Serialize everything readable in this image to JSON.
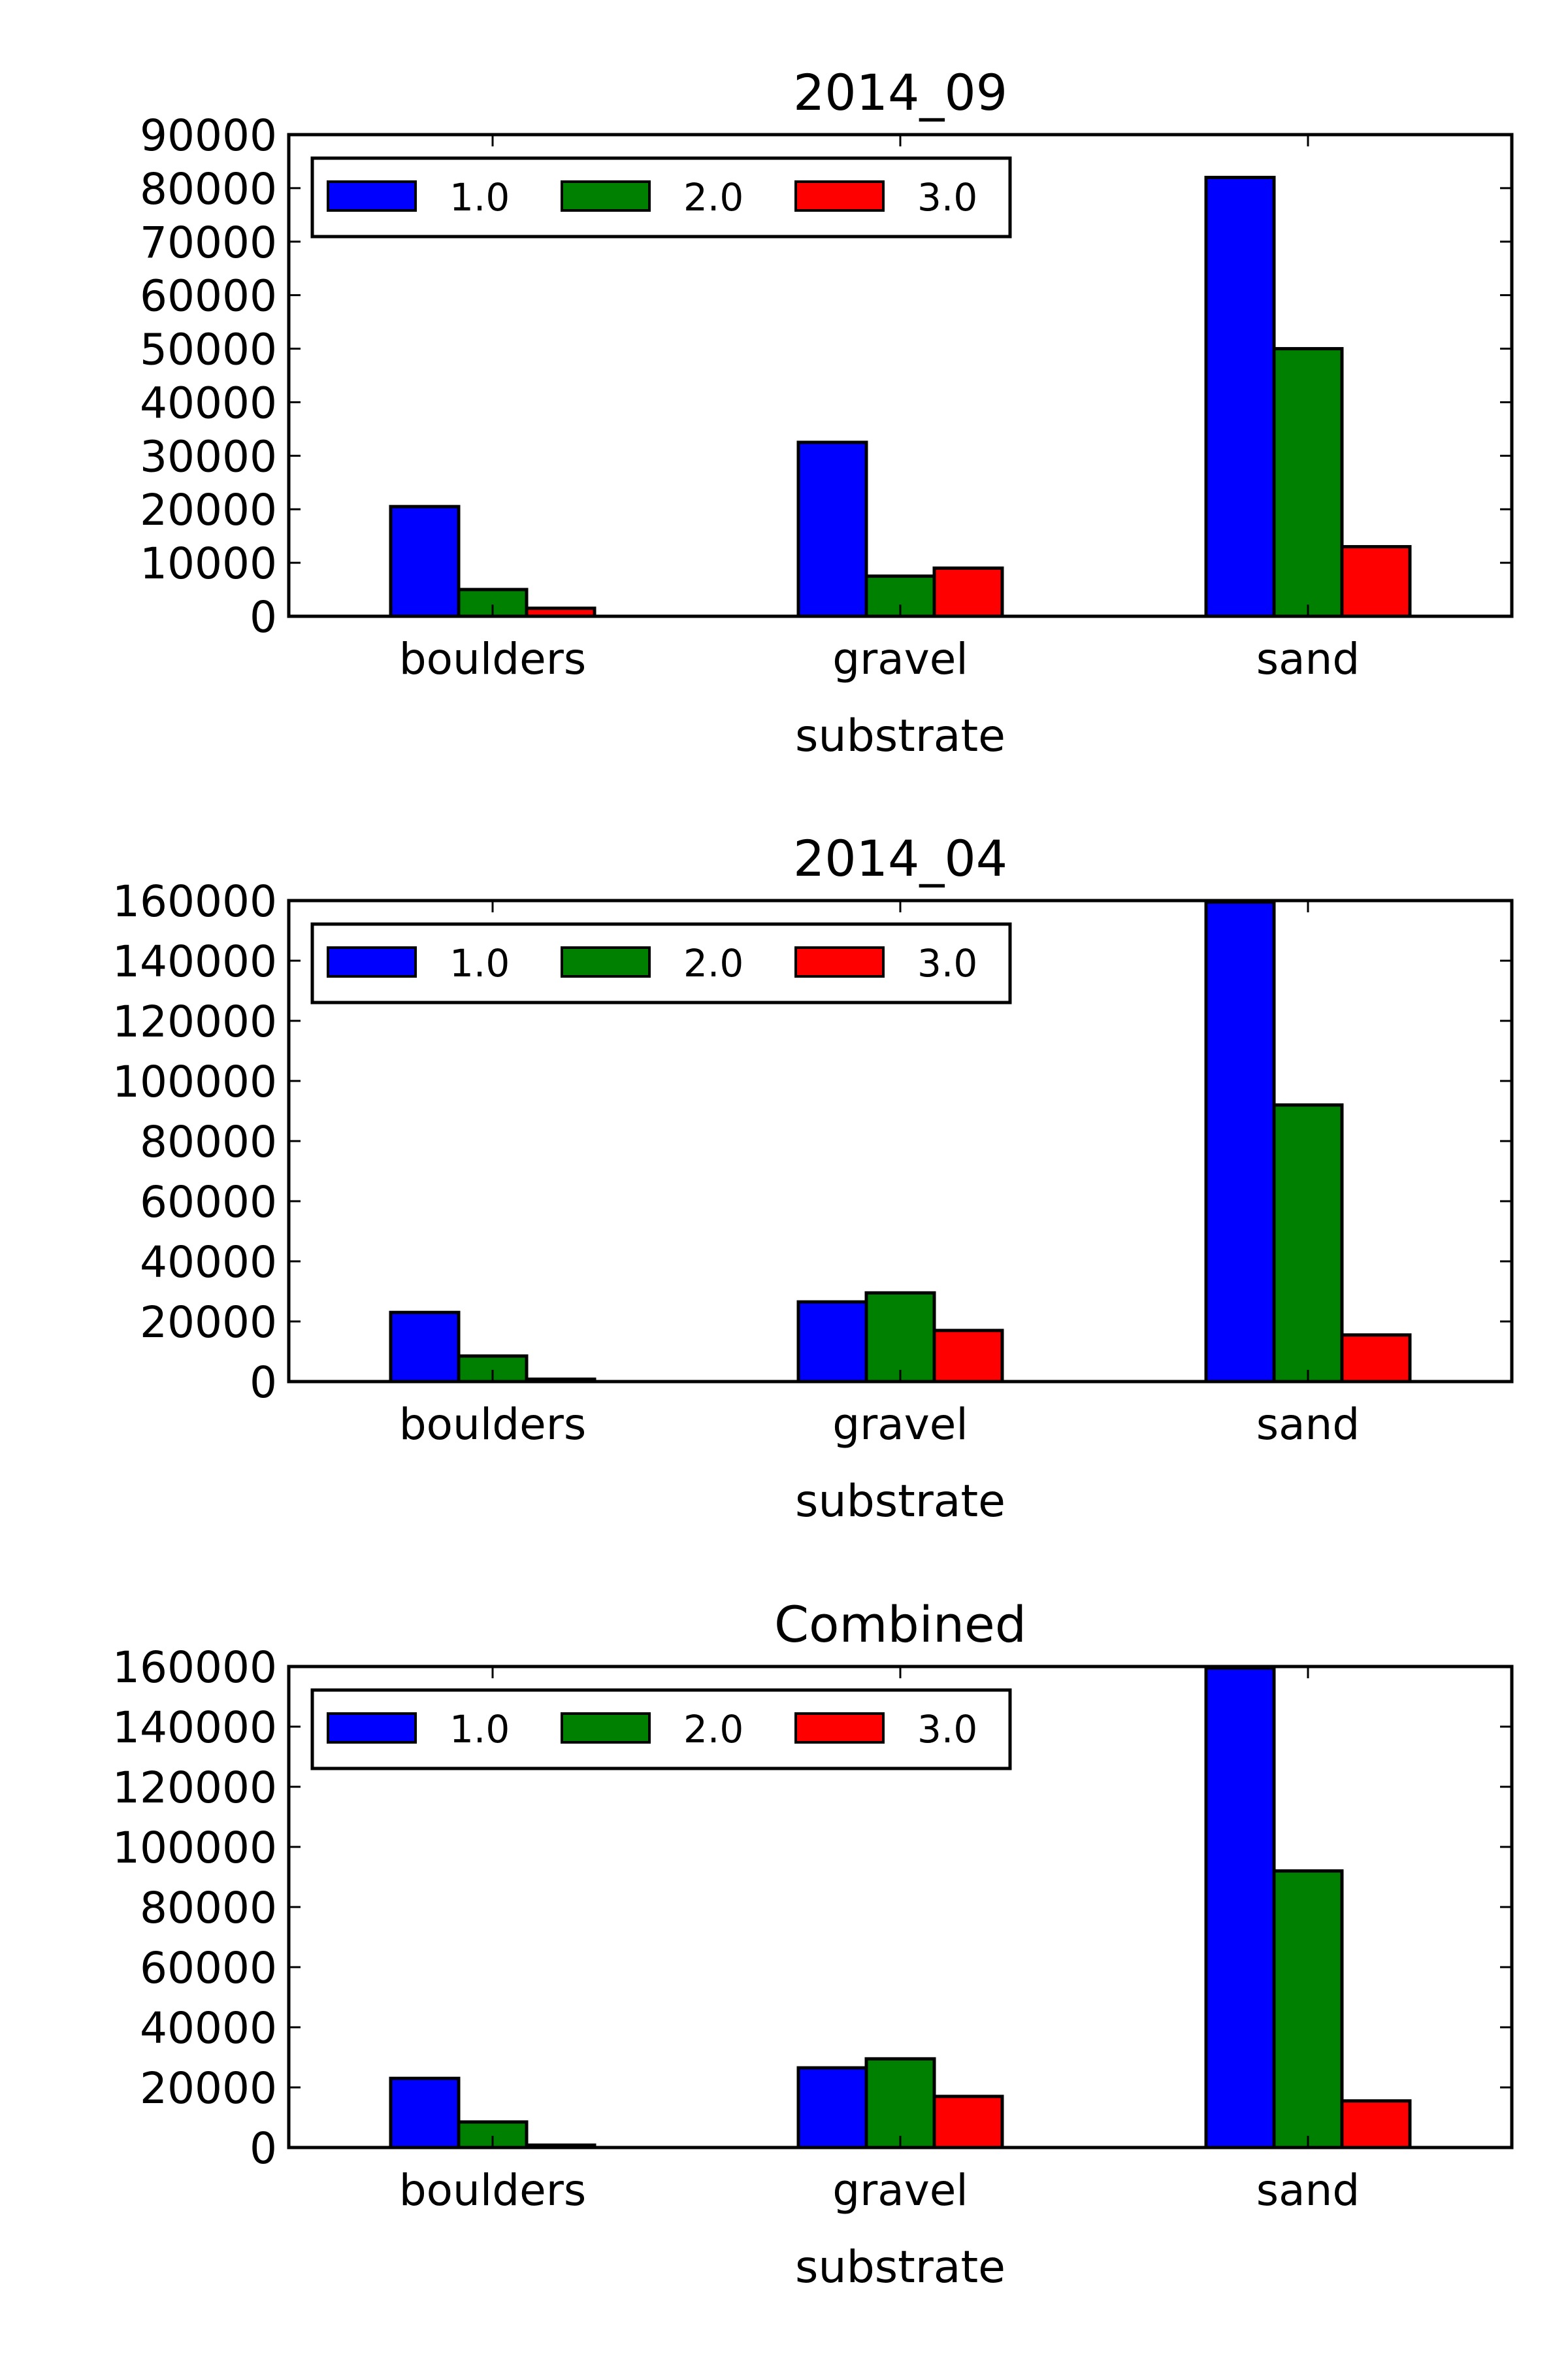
{
  "figure": {
    "x_axis_label": "substrate"
  },
  "chart_data": [
    {
      "type": "bar",
      "title": "2014_09",
      "xlabel": "substrate",
      "ylabel": "",
      "categories": [
        "boulders",
        "gravel",
        "sand"
      ],
      "series": [
        {
          "name": "1.0",
          "color": "#0000ff",
          "values": [
            20500,
            32500,
            82000
          ]
        },
        {
          "name": "2.0",
          "color": "#008000",
          "values": [
            5000,
            7500,
            50000
          ]
        },
        {
          "name": "3.0",
          "color": "#ff0000",
          "values": [
            1500,
            9000,
            13000
          ]
        }
      ],
      "ylim": [
        0,
        90000
      ],
      "yticks": [
        "0",
        "10000",
        "20000",
        "30000",
        "40000",
        "50000",
        "60000",
        "70000",
        "80000",
        "90000"
      ],
      "legend": "upper-left",
      "grid": false
    },
    {
      "type": "bar",
      "title": "2014_04",
      "xlabel": "substrate",
      "ylabel": "",
      "categories": [
        "boulders",
        "gravel",
        "sand"
      ],
      "series": [
        {
          "name": "1.0",
          "color": "#0000ff",
          "values": [
            23000,
            26500,
            159500
          ]
        },
        {
          "name": "2.0",
          "color": "#008000",
          "values": [
            8500,
            29500,
            92000
          ]
        },
        {
          "name": "3.0",
          "color": "#ff0000",
          "values": [
            800,
            17000,
            15500
          ]
        }
      ],
      "ylim": [
        0,
        160000
      ],
      "yticks": [
        "0",
        "20000",
        "40000",
        "60000",
        "80000",
        "100000",
        "120000",
        "140000",
        "160000"
      ],
      "legend": "upper-left",
      "grid": false
    },
    {
      "type": "bar",
      "title": "Combined",
      "xlabel": "substrate",
      "ylabel": "",
      "categories": [
        "boulders",
        "gravel",
        "sand"
      ],
      "series": [
        {
          "name": "1.0",
          "color": "#0000ff",
          "values": [
            23000,
            26500,
            159500
          ]
        },
        {
          "name": "2.0",
          "color": "#008000",
          "values": [
            8500,
            29500,
            92000
          ]
        },
        {
          "name": "3.0",
          "color": "#ff0000",
          "values": [
            800,
            17000,
            15500
          ]
        }
      ],
      "ylim": [
        0,
        160000
      ],
      "yticks": [
        "0",
        "20000",
        "40000",
        "60000",
        "80000",
        "100000",
        "120000",
        "140000",
        "160000"
      ],
      "legend": "upper-left",
      "grid": false
    }
  ]
}
